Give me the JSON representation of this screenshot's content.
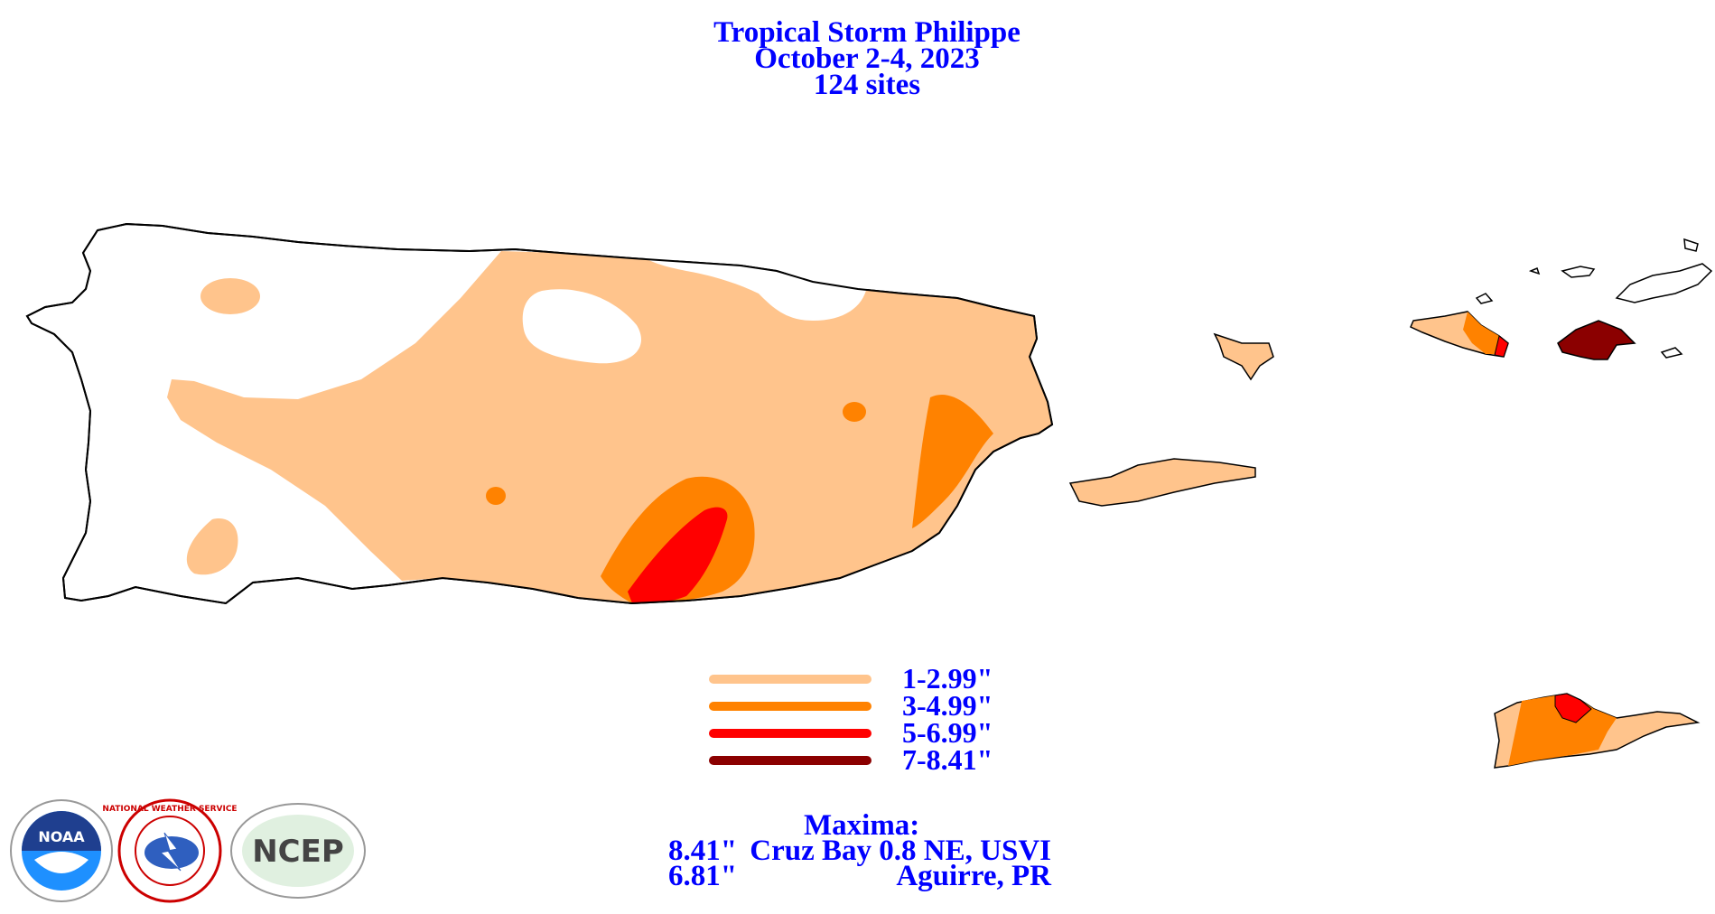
{
  "title": {
    "line1": "Tropical Storm Philippe",
    "line2": "October 2-4, 2023",
    "line3": "124 sites"
  },
  "legend": [
    {
      "label": "1-2.99\"",
      "color": "#ffc48c"
    },
    {
      "label": "3-4.99\"",
      "color": "#ff8200"
    },
    {
      "label": "5-6.99\"",
      "color": "#ff0000"
    },
    {
      "label": "7-8.41\"",
      "color": "#8b0000"
    }
  ],
  "maxima": {
    "heading": "Maxima:",
    "rows": [
      {
        "value": "8.41\"",
        "site": "Cruz Bay 0.8 NE, USVI"
      },
      {
        "value": "6.81\"",
        "site": "Aguirre, PR"
      }
    ]
  },
  "logos": {
    "noaa": "NOAA",
    "nws": "NATIONAL WEATHER SERVICE",
    "ncep": "NCEP"
  },
  "colors": {
    "text": "#0000ff",
    "outline": "#000000",
    "band1": "#ffc48c",
    "band2": "#ff8200",
    "band3": "#ff0000",
    "band4": "#8b0000"
  }
}
